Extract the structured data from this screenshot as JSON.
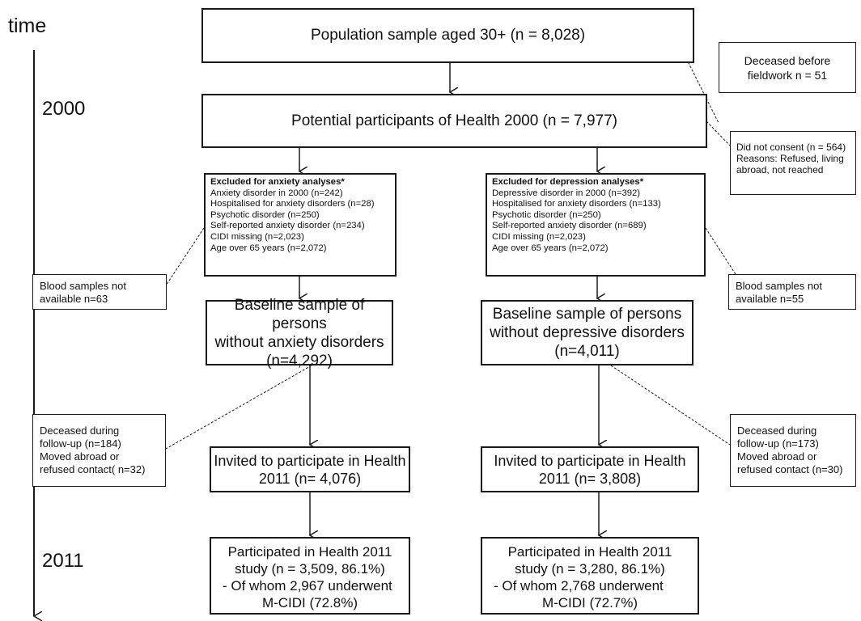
{
  "timeline": {
    "label": "time",
    "year_start": "2000",
    "year_end": "2011"
  },
  "flow": {
    "population": "Population sample aged 30+  (n = 8,028)",
    "potential": "Potential participants of Health 2000 (n = 7,977)",
    "deceased_before": [
      "Deceased before",
      "fieldwork n = 51"
    ],
    "did_not_consent": [
      "Did not consent (n = 564)",
      "Reasons: Refused, living",
      "abroad, not reached"
    ],
    "anxiety": {
      "excluded_title": "Excluded for anxiety analyses*",
      "excluded_items": [
        "Anxiety disorder in 2000 (n=242)",
        "Hospitalised for anxiety disorders (n=28)",
        "Psychotic disorder (n=250)",
        "Self-reported anxiety disorder (n=234)",
        "CIDI missing (n=2,023)",
        "Age over 65 years (n=2,072)"
      ],
      "blood": [
        "Blood samples not",
        "available n=63"
      ],
      "baseline": [
        "Baseline sample of persons",
        "without anxiety disorders",
        "(n=4,292)"
      ],
      "deceased": [
        "Deceased during",
        "follow-up (n=184)",
        "Moved abroad or",
        "refused contact( n=32)"
      ],
      "invited": [
        "Invited to participate in Health",
        "2011 (n= 4,076)"
      ],
      "participated": [
        "Participated in Health 2011",
        "study (n = 3,509, 86.1%)",
        "-  Of whom 2,967 underwent",
        "M-CIDI (72.8%)"
      ]
    },
    "depression": {
      "excluded_title": "Excluded for depression analyses*",
      "excluded_items": [
        "Depressive disorder in 2000 (n=392)",
        "Hospitalised for anxiety disorders (n=133)",
        "Psychotic disorder (n=250)",
        "Self-reported anxiety disorder (n=689)",
        "CIDI missing (n=2,023)",
        "Age over 65 years (n=2,072)"
      ],
      "blood": [
        "Blood samples not",
        "available n=55"
      ],
      "baseline": [
        "Baseline sample of persons",
        "without depressive disorders",
        "(n=4,011)"
      ],
      "deceased": [
        "Deceased during",
        "follow-up (n=173)",
        "Moved abroad or",
        "refused contact (n=30)"
      ],
      "invited": [
        "Invited to participate in Health",
        "2011 (n= 3,808)"
      ],
      "participated": [
        "Participated in Health 2011",
        "study (n = 3,280, 86.1%)",
        "-  Of whom 2,768 underwent",
        "M-CIDI (72.7%)"
      ]
    }
  }
}
